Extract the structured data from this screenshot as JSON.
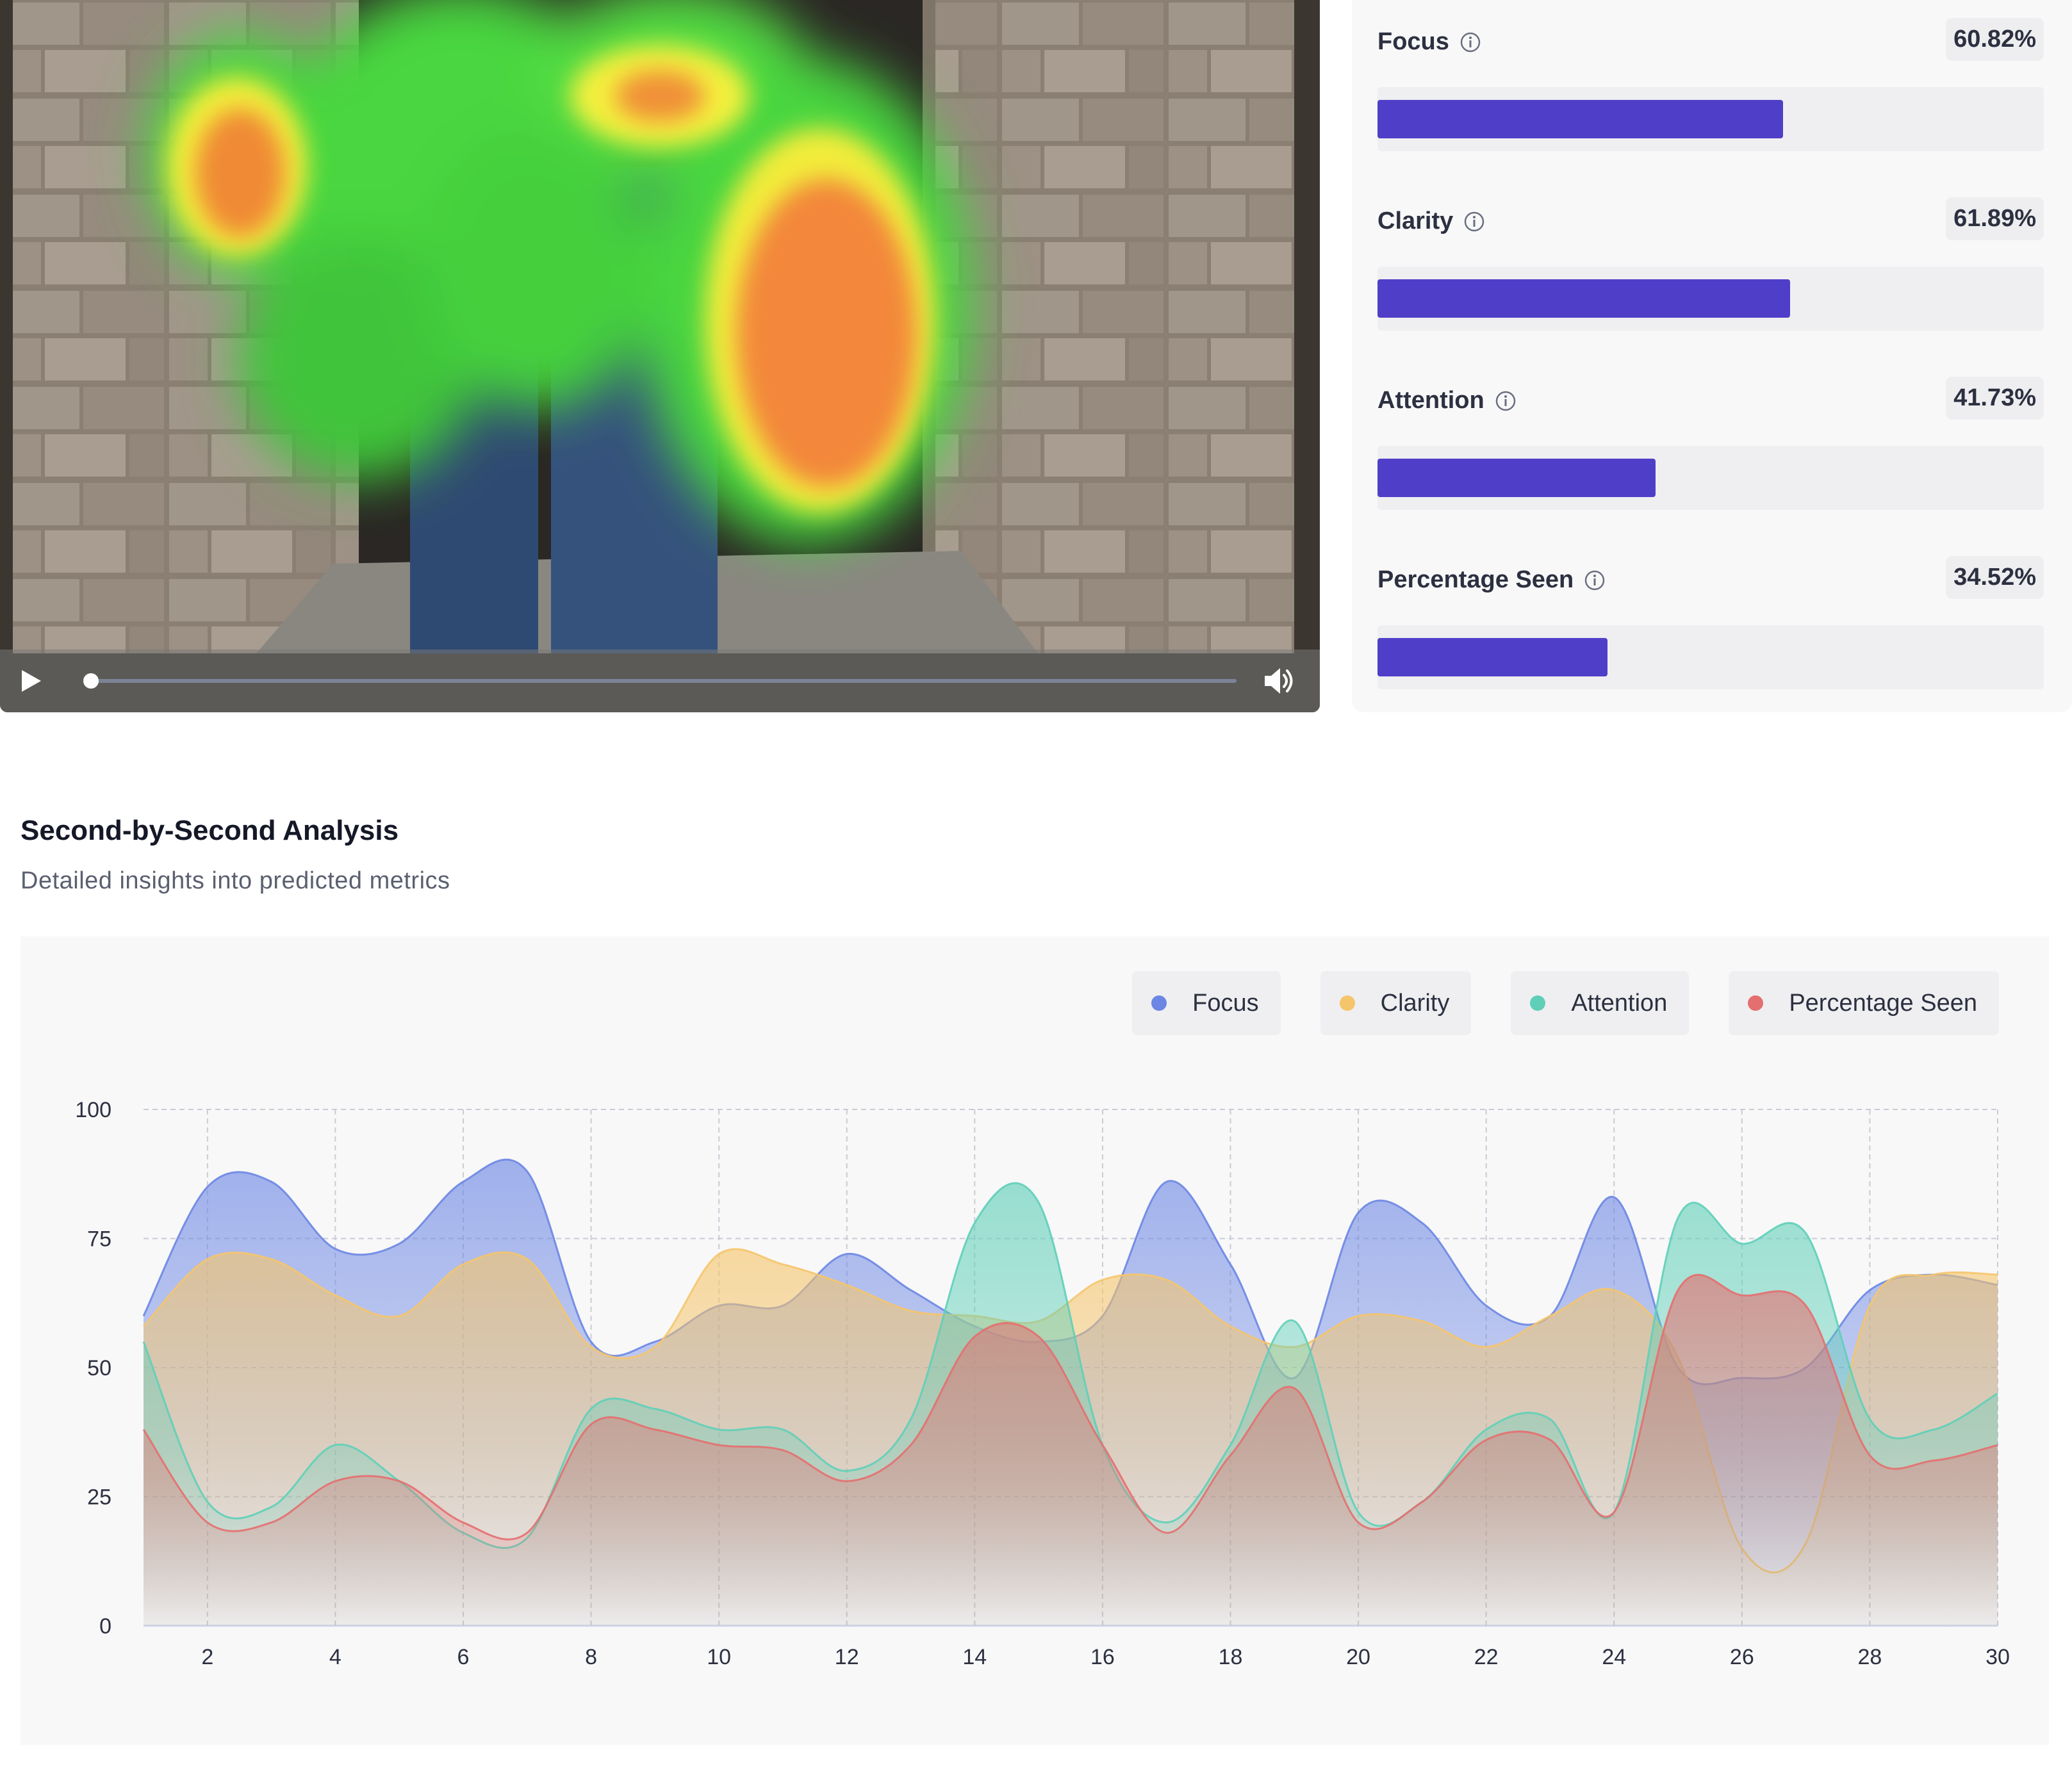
{
  "video": {
    "play_icon": "play-icon",
    "volume_icon": "volume-icon",
    "progress": 0.0
  },
  "metrics": [
    {
      "label": "Focus",
      "value": "60.82%",
      "fill": 0.6082
    },
    {
      "label": "Clarity",
      "value": "61.89%",
      "fill": 0.6189
    },
    {
      "label": "Attention",
      "value": "41.73%",
      "fill": 0.4173
    },
    {
      "label": "Percentage Seen",
      "value": "34.52%",
      "fill": 0.3452
    }
  ],
  "section": {
    "title": "Second-by-Second Analysis",
    "subtitle": "Detailed insights into predicted metrics"
  },
  "colors": {
    "accent_bar": "#4f3fc8",
    "focus": "#6b86e3",
    "clarity": "#f5c56b",
    "attention": "#5fcfb8",
    "percentage_seen": "#e46f6f"
  },
  "chart_data": {
    "type": "area",
    "title": "",
    "xlabel": "",
    "ylabel": "",
    "x": [
      1,
      2,
      3,
      4,
      5,
      6,
      7,
      8,
      9,
      10,
      11,
      12,
      13,
      14,
      15,
      16,
      17,
      18,
      19,
      20,
      21,
      22,
      23,
      24,
      25,
      26,
      27,
      28,
      29,
      30
    ],
    "xticks": [
      2,
      4,
      6,
      8,
      10,
      12,
      14,
      16,
      18,
      20,
      22,
      24,
      26,
      28,
      30
    ],
    "yticks": [
      0,
      25,
      50,
      75,
      100
    ],
    "xlim": [
      1,
      30
    ],
    "ylim": [
      0,
      100
    ],
    "grid": true,
    "legend_position": "top-right",
    "series": [
      {
        "name": "Focus",
        "color": "#6b86e3",
        "values": [
          60,
          85,
          86,
          73,
          74,
          86,
          88,
          55,
          55,
          62,
          62,
          72,
          65,
          58,
          55,
          60,
          86,
          70,
          48,
          80,
          78,
          62,
          60,
          83,
          50,
          48,
          50,
          65,
          68,
          66
        ]
      },
      {
        "name": "Clarity",
        "color": "#f5c56b",
        "values": [
          58,
          71,
          71,
          64,
          60,
          70,
          71,
          54,
          54,
          72,
          70,
          66,
          61,
          60,
          59,
          67,
          67,
          58,
          54,
          60,
          59,
          54,
          60,
          65,
          52,
          15,
          16,
          62,
          68,
          68
        ]
      },
      {
        "name": "Attention",
        "color": "#5fcfb8",
        "values": [
          55,
          24,
          23,
          35,
          28,
          18,
          17,
          42,
          42,
          38,
          38,
          30,
          40,
          78,
          82,
          35,
          20,
          35,
          59,
          22,
          24,
          38,
          40,
          22,
          79,
          74,
          76,
          40,
          38,
          45
        ]
      },
      {
        "name": "Percentage Seen",
        "color": "#e46f6f",
        "values": [
          38,
          20,
          20,
          28,
          28,
          20,
          18,
          39,
          38,
          35,
          34,
          28,
          35,
          56,
          56,
          35,
          18,
          33,
          46,
          20,
          24,
          36,
          36,
          22,
          65,
          64,
          62,
          33,
          32,
          35
        ]
      }
    ]
  }
}
